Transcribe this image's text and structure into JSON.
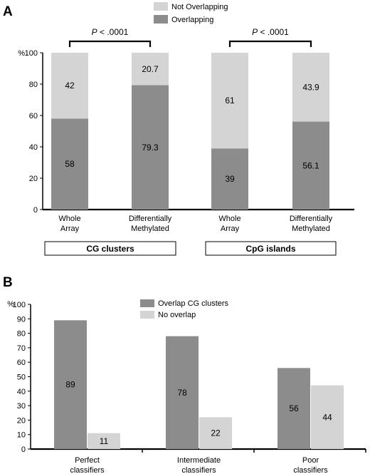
{
  "chart_data": [
    {
      "panel_label": "A",
      "type": "bar",
      "stacked": true,
      "y_unit": "%",
      "ylim": [
        0,
        100
      ],
      "yticks": [
        0,
        20,
        40,
        60,
        80,
        100
      ],
      "categories": [
        [
          "Whole",
          "Array"
        ],
        [
          "Differentially",
          "Methylated"
        ],
        [
          "Whole",
          "Array"
        ],
        [
          "Differentially",
          "Methylated"
        ]
      ],
      "series": [
        {
          "name": "Overlapping",
          "values": [
            58,
            79.3,
            39,
            56.1
          ],
          "labels": [
            "58",
            "79.3",
            "39",
            "56.1"
          ]
        },
        {
          "name": "Not Overlapping",
          "values": [
            42,
            20.7,
            61,
            43.9
          ],
          "labels": [
            "42",
            "20.7",
            "61",
            "43.9"
          ]
        }
      ],
      "legend": [
        {
          "name": "Not Overlapping",
          "color": "#d4d4d4"
        },
        {
          "name": "Overlapping",
          "color": "#8c8c8c"
        }
      ],
      "groups": [
        {
          "label": "CG clusters",
          "bars": [
            0,
            1
          ]
        },
        {
          "label": "CpG islands",
          "bars": [
            2,
            3
          ]
        }
      ],
      "annotations": [
        {
          "text": "P < .0001",
          "italic_part": "P",
          "between": [
            0,
            1
          ]
        },
        {
          "text": "P < .0001",
          "italic_part": "P",
          "between": [
            2,
            3
          ]
        }
      ]
    },
    {
      "panel_label": "B",
      "type": "bar",
      "stacked": false,
      "y_unit": "%",
      "ylim": [
        0,
        100
      ],
      "yticks": [
        0,
        10,
        20,
        30,
        40,
        50,
        60,
        70,
        80,
        90,
        100
      ],
      "categories": [
        [
          "Perfect",
          "classifiers"
        ],
        [
          "Intermediate",
          "classifiers"
        ],
        [
          "Poor",
          "classifiers"
        ]
      ],
      "series": [
        {
          "name": "Overlap CG clusters",
          "values": [
            89,
            78,
            56
          ],
          "labels": [
            "89",
            "78",
            "56"
          ]
        },
        {
          "name": "No overlap",
          "values": [
            11,
            22,
            44
          ],
          "labels": [
            "11",
            "22",
            "44"
          ]
        }
      ],
      "legend": [
        {
          "name": "Overlap CG clusters",
          "color": "#8c8c8c"
        },
        {
          "name": "No overlap",
          "color": "#d4d4d4"
        }
      ]
    }
  ],
  "colors": {
    "dark": "#8c8c8c",
    "light": "#d4d4d4"
  }
}
